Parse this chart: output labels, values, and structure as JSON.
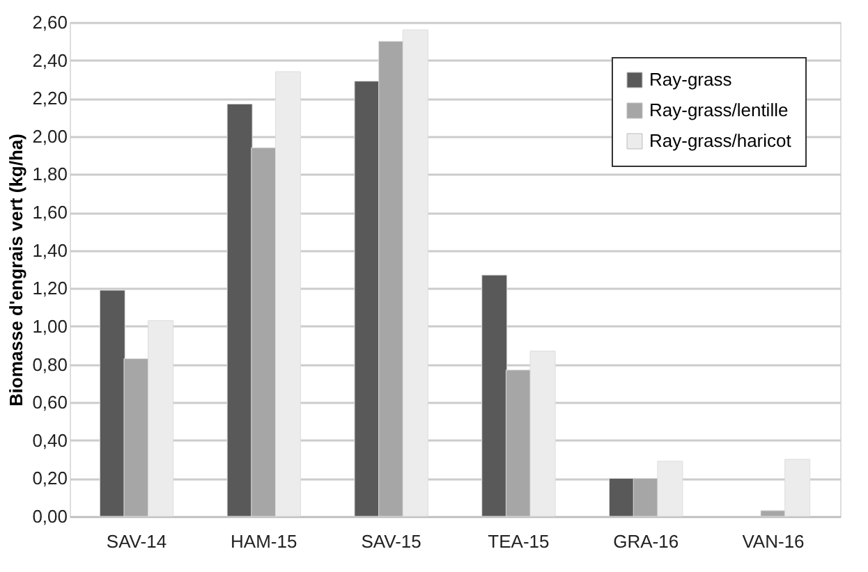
{
  "chart_data": {
    "type": "bar",
    "ylabel": "Biomasse d'engrais vert (kg/ha)",
    "categories": [
      "SAV-14",
      "HAM-15",
      "SAV-15",
      "TEA-15",
      "GRA-16",
      "VAN-16"
    ],
    "series": [
      {
        "name": "Ray-grass",
        "color": "#595959",
        "values": [
          1.19,
          2.17,
          2.29,
          1.27,
          0.2,
          null
        ]
      },
      {
        "name": "Ray-grass/lentille",
        "color": "#a6a6a6",
        "values": [
          0.83,
          1.94,
          2.5,
          0.77,
          0.2,
          0.03
        ]
      },
      {
        "name": "Ray-grass/haricot",
        "color": "#ececec",
        "values": [
          1.03,
          2.34,
          2.56,
          0.87,
          0.29,
          0.3
        ]
      }
    ],
    "ylim": [
      0,
      2.6
    ],
    "yticks": [
      {
        "value": 0,
        "label": "0,00"
      },
      {
        "value": 0.2,
        "label": "0,20"
      },
      {
        "value": 0.4,
        "label": "0,40"
      },
      {
        "value": 0.6,
        "label": "0,60"
      },
      {
        "value": 0.8,
        "label": "0,80"
      },
      {
        "value": 1.0,
        "label": "1,00"
      },
      {
        "value": 1.2,
        "label": "1,20"
      },
      {
        "value": 1.4,
        "label": "1,40"
      },
      {
        "value": 1.6,
        "label": "1,60"
      },
      {
        "value": 1.8,
        "label": "1,80"
      },
      {
        "value": 2.0,
        "label": "2,00"
      },
      {
        "value": 2.2,
        "label": "2,20"
      },
      {
        "value": 2.4,
        "label": "2,40"
      },
      {
        "value": 2.6,
        "label": "2,60"
      }
    ],
    "grid": "y",
    "legend": "top right"
  }
}
